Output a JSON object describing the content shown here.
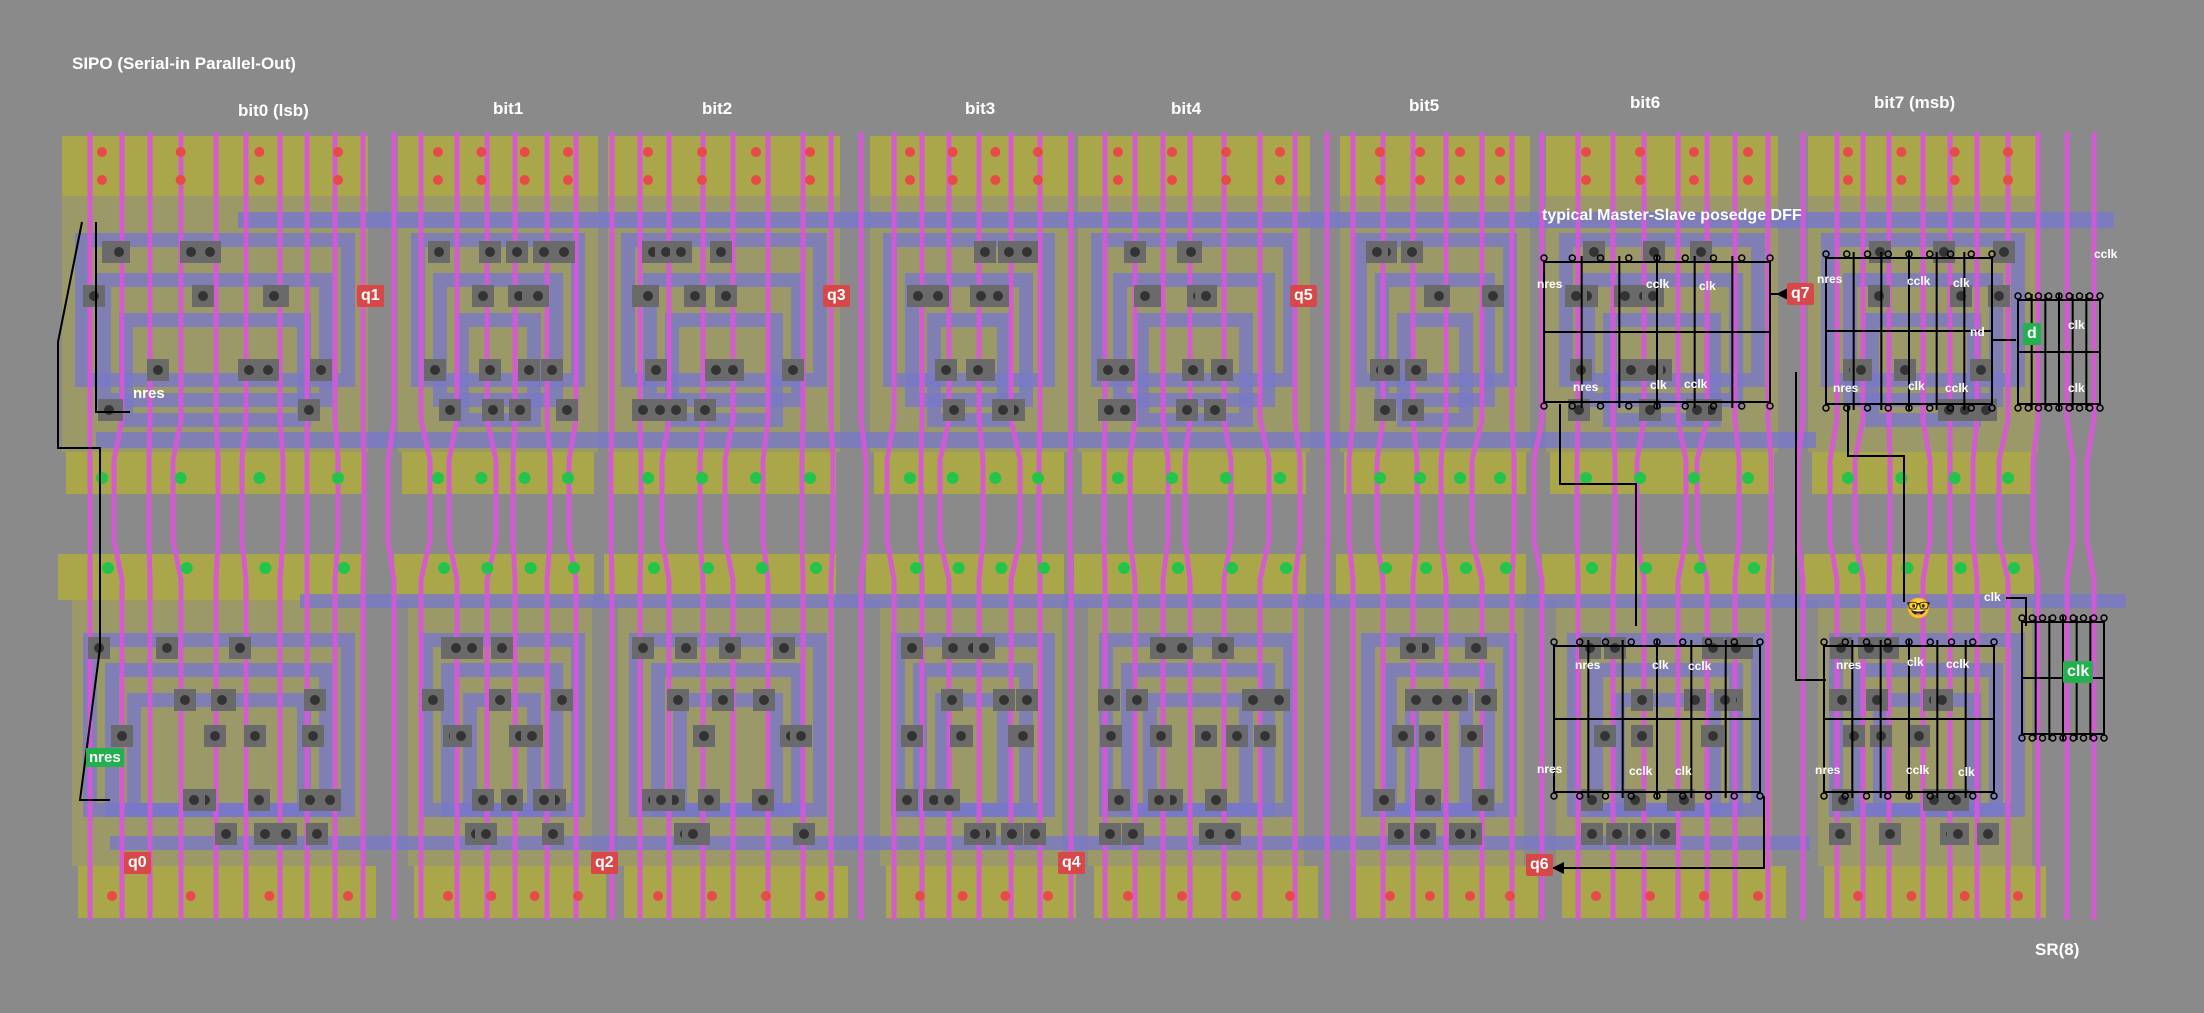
{
  "title": "SIPO (Serial-in Parallel-Out)",
  "footer_label": "SR(8)",
  "dff_title": "typical Master-Slave posedge DFF",
  "bits": [
    "bit0 (lsb)",
    "bit1",
    "bit2",
    "bit3",
    "bit4",
    "bit5",
    "bit6",
    "bit7 (msb)"
  ],
  "outputs": [
    "q0",
    "q1",
    "q2",
    "q3",
    "q4",
    "q5",
    "q6",
    "q7"
  ],
  "inputs": {
    "d": "d",
    "clk": "clk"
  },
  "signals": {
    "nres": "nres",
    "clk": "clk",
    "cclk": "cclk",
    "nd": "nd"
  },
  "colors": {
    "background": "#8a8a8a",
    "diffusion": "#aaa64a",
    "poly": "#d955d9",
    "metal": "#7878c8",
    "contact": "#6a6a6a",
    "output_tag": "#d94848",
    "input_tag": "#22b14c",
    "schematic": "#000000"
  },
  "emoji": "🤓"
}
